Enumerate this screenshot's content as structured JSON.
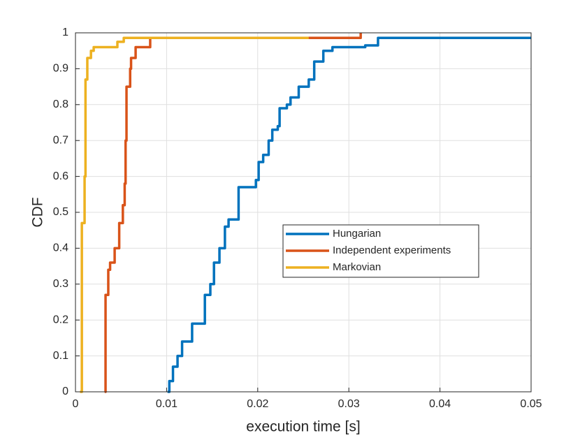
{
  "chart_data": {
    "type": "line",
    "xlabel": "execution time [s]",
    "ylabel": "CDF",
    "xlim": [
      0,
      0.05
    ],
    "ylim": [
      0,
      1
    ],
    "xticks": [
      0,
      0.01,
      0.02,
      0.03,
      0.04,
      0.05
    ],
    "yticks": [
      0,
      0.1,
      0.2,
      0.3,
      0.4,
      0.5,
      0.6,
      0.7,
      0.8,
      0.9,
      1
    ],
    "grid": true,
    "legend_position": "east",
    "step": true,
    "series": [
      {
        "name": "Hungarian",
        "color": "#0072BD",
        "x": [
          0.0101,
          0.0103,
          0.0107,
          0.0112,
          0.0117,
          0.0124,
          0.0128,
          0.0138,
          0.0142,
          0.0148,
          0.0152,
          0.0158,
          0.0164,
          0.0168,
          0.0172,
          0.0179,
          0.0195,
          0.0198,
          0.0201,
          0.0206,
          0.0212,
          0.0216,
          0.0222,
          0.0224,
          0.0232,
          0.0236,
          0.0245,
          0.0256,
          0.0262,
          0.0272,
          0.0282,
          0.0318,
          0.0332,
          0.05
        ],
        "values": [
          0,
          0.03,
          0.07,
          0.1,
          0.14,
          0.14,
          0.19,
          0.19,
          0.27,
          0.3,
          0.36,
          0.4,
          0.46,
          0.48,
          0.48,
          0.57,
          0.57,
          0.59,
          0.64,
          0.66,
          0.7,
          0.73,
          0.74,
          0.79,
          0.8,
          0.82,
          0.85,
          0.87,
          0.92,
          0.95,
          0.96,
          0.965,
          0.986,
          0.986
        ]
      },
      {
        "name": "Independent experiments",
        "color": "#D95319",
        "x": [
          0.0032,
          0.0033,
          0.0036,
          0.0038,
          0.0043,
          0.0048,
          0.0052,
          0.0054,
          0.0055,
          0.0056,
          0.006,
          0.0061,
          0.0066,
          0.0079,
          0.0082,
          0.0313,
          0.0313
        ],
        "values": [
          0,
          0.27,
          0.34,
          0.36,
          0.4,
          0.47,
          0.52,
          0.58,
          0.7,
          0.85,
          0.9,
          0.93,
          0.96,
          0.96,
          0.986,
          0.986,
          1
        ]
      },
      {
        "name": "Markovian",
        "color": "#EDB120",
        "x": [
          0.0005,
          0.0007,
          0.001,
          0.0011,
          0.0013,
          0.0017,
          0.002,
          0.0044,
          0.0046,
          0.0053,
          0.0256
        ],
        "values": [
          0,
          0.47,
          0.6,
          0.87,
          0.93,
          0.95,
          0.96,
          0.96,
          0.975,
          0.986,
          0.986
        ]
      }
    ]
  }
}
